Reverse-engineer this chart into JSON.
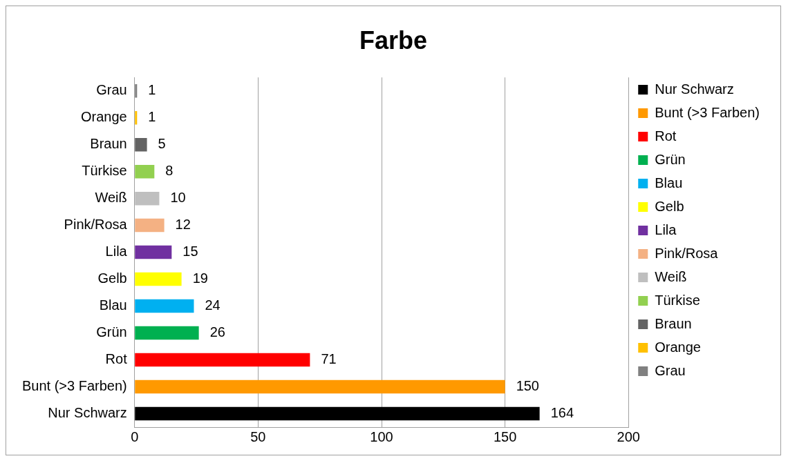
{
  "chart_data": {
    "type": "bar",
    "orientation": "horizontal",
    "title": "Farbe",
    "categories": [
      "Grau",
      "Orange",
      "Braun",
      "Türkise",
      "Weiß",
      "Pink/Rosa",
      "Lila",
      "Gelb",
      "Blau",
      "Grün",
      "Rot",
      "Bunt (>3 Farben)",
      "Nur Schwarz"
    ],
    "series": [
      {
        "name": "Grau",
        "color": "#808080",
        "values": [
          1,
          null,
          null,
          null,
          null,
          null,
          null,
          null,
          null,
          null,
          null,
          null,
          null
        ]
      },
      {
        "name": "Orange",
        "color": "#ffc000",
        "values": [
          null,
          1,
          null,
          null,
          null,
          null,
          null,
          null,
          null,
          null,
          null,
          null,
          null
        ]
      },
      {
        "name": "Braun",
        "color": "#636363",
        "values": [
          null,
          null,
          5,
          null,
          null,
          null,
          null,
          null,
          null,
          null,
          null,
          null,
          null
        ]
      },
      {
        "name": "Türkise",
        "color": "#92d050",
        "values": [
          null,
          null,
          null,
          8,
          null,
          null,
          null,
          null,
          null,
          null,
          null,
          null,
          null
        ]
      },
      {
        "name": "Weiß",
        "color": "#bfbfbf",
        "values": [
          null,
          null,
          null,
          null,
          10,
          null,
          null,
          null,
          null,
          null,
          null,
          null,
          null
        ]
      },
      {
        "name": "Pink/Rosa",
        "color": "#f4b183",
        "values": [
          null,
          null,
          null,
          null,
          null,
          12,
          null,
          null,
          null,
          null,
          null,
          null,
          null
        ]
      },
      {
        "name": "Lila",
        "color": "#7030a0",
        "values": [
          null,
          null,
          null,
          null,
          null,
          null,
          15,
          null,
          null,
          null,
          null,
          null,
          null
        ]
      },
      {
        "name": "Gelb",
        "color": "#ffff00",
        "values": [
          null,
          null,
          null,
          null,
          null,
          null,
          null,
          19,
          null,
          null,
          null,
          null,
          null
        ]
      },
      {
        "name": "Blau",
        "color": "#00b0f0",
        "values": [
          null,
          null,
          null,
          null,
          null,
          null,
          null,
          null,
          24,
          null,
          null,
          null,
          null
        ]
      },
      {
        "name": "Grün",
        "color": "#00b050",
        "values": [
          null,
          null,
          null,
          null,
          null,
          null,
          null,
          null,
          null,
          26,
          null,
          null,
          null
        ]
      },
      {
        "name": "Rot",
        "color": "#ff0000",
        "values": [
          null,
          null,
          null,
          null,
          null,
          null,
          null,
          null,
          null,
          null,
          71,
          null,
          null
        ]
      },
      {
        "name": "Bunt (>3 Farben)",
        "color": "#ff9900",
        "values": [
          null,
          null,
          null,
          null,
          null,
          null,
          null,
          null,
          null,
          null,
          null,
          150,
          null
        ]
      },
      {
        "name": "Nur Schwarz",
        "color": "#000000",
        "values": [
          null,
          null,
          null,
          null,
          null,
          null,
          null,
          null,
          null,
          null,
          null,
          null,
          164
        ]
      }
    ],
    "xlim": [
      0,
      200
    ],
    "xticks": [
      0,
      50,
      100,
      150,
      200
    ],
    "grid": "x",
    "legend": "right",
    "data_labels": true
  }
}
